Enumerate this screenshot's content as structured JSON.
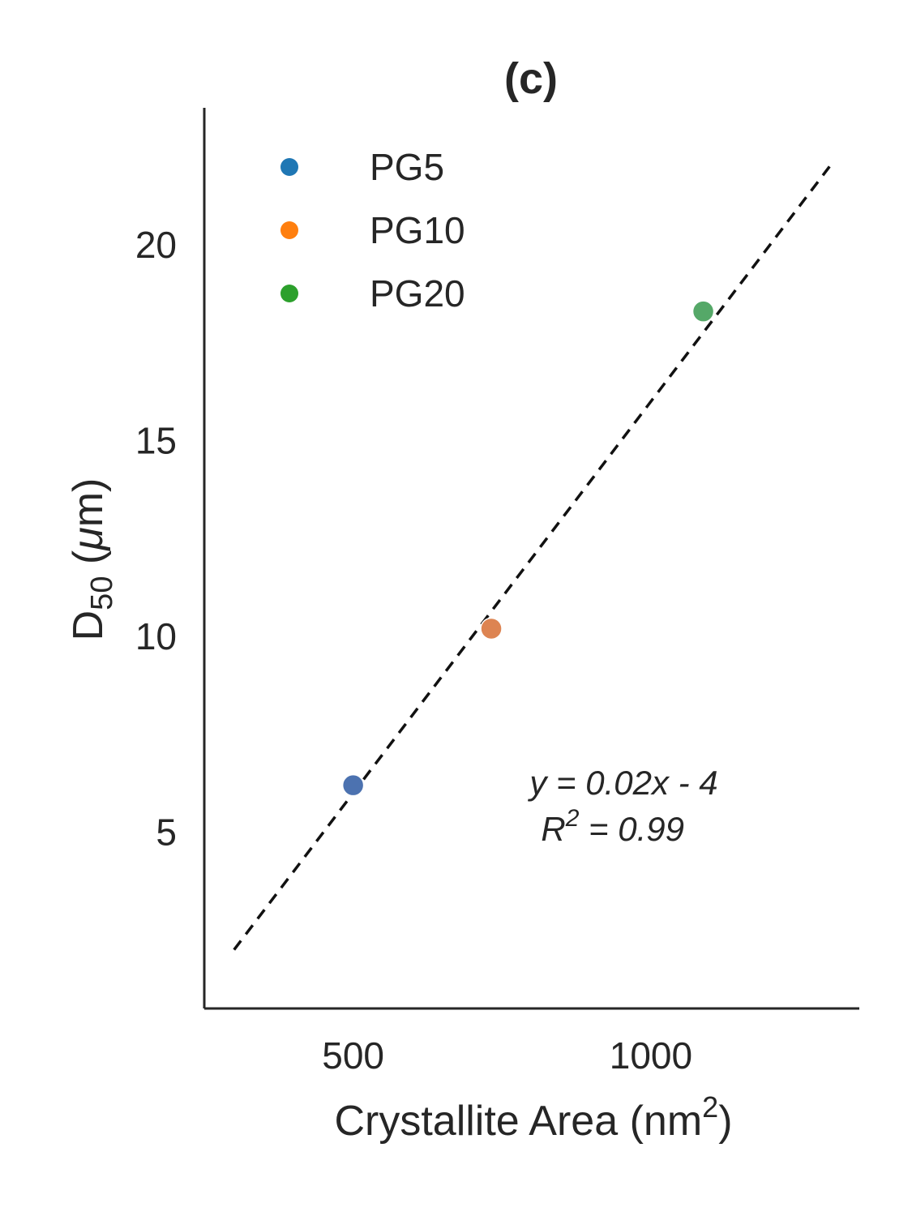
{
  "chart_data": {
    "type": "scatter",
    "title": "(c)",
    "xlabel": "Crystallite Area (nm",
    "xlabel_sup": "2",
    "xlabel_close": ")",
    "ylabel_main": "D",
    "ylabel_sub": "50",
    "ylabel_open": " (",
    "ylabel_mu": "μ",
    "ylabel_rest": "m)",
    "xlim": [
      250,
      1350
    ],
    "ylim": [
      0.5,
      23.5
    ],
    "xticks": [
      500,
      1000
    ],
    "yticks": [
      5,
      10,
      15,
      20
    ],
    "series": [
      {
        "name": "PG5",
        "legend_color": "#1f77b4",
        "color": "#4c72b0",
        "x": 500,
        "y": 6.2
      },
      {
        "name": "PG10",
        "legend_color": "#ff7f0e",
        "color": "#dd8452",
        "x": 732,
        "y": 10.2
      },
      {
        "name": "PG20",
        "legend_color": "#2ca02c",
        "color": "#55a868",
        "x": 1088,
        "y": 18.3
      }
    ],
    "fit_line": {
      "x_start": 300,
      "x_end": 1300,
      "slope": 0.02,
      "intercept": -4,
      "color": "#111111",
      "style": "dashed"
    },
    "annotation": {
      "equation": "y = 0.02x - 4",
      "r2_label": "R",
      "r2_sup": "2",
      "r2_value": " = 0.99",
      "anchor_data": [
        810,
        6.3
      ]
    },
    "legend_position": "top-left"
  }
}
